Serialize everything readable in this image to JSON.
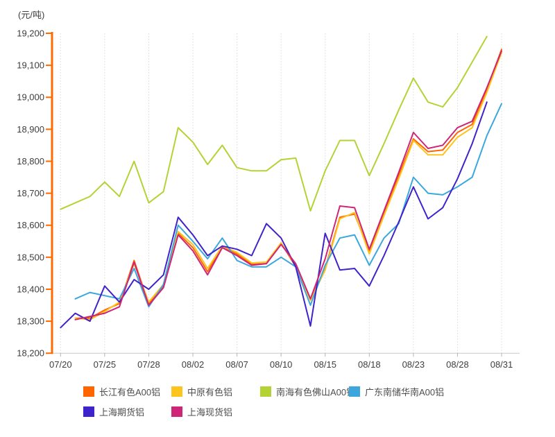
{
  "chart": {
    "unit_label": "(元/吨)",
    "colors": {
      "y_axis": "#ff6a00",
      "x_axis": "#c8c8c8",
      "x_tick": "#b5b5b5",
      "gridline": "#dadada",
      "tick_text": "#3d3d3d",
      "legend_text": "#4d4d4d",
      "background": "#ffffff"
    }
  },
  "chart_data": {
    "type": "line",
    "title": "",
    "ylabel": "元/吨",
    "xlabel": "",
    "ylim": [
      18200,
      19200
    ],
    "y_tick_step": 100,
    "y_tick_labels": [
      "18,200",
      "18,300",
      "18,400",
      "18,500",
      "18,600",
      "18,700",
      "18,800",
      "18,900",
      "19,000",
      "19,100",
      "19,200"
    ],
    "n_points": 31,
    "x_tick_every": 3,
    "x_tick_labels": [
      "07/20",
      "07/25",
      "07/28",
      "08/02",
      "08/07",
      "08/10",
      "08/15",
      "08/18",
      "08/23",
      "08/28",
      "08/31"
    ],
    "grid": "vertical-dotted",
    "legend_position": "bottom",
    "series": [
      {
        "name": "长江有色A00铝",
        "color": "#ff6600",
        "values": [
          null,
          18310,
          18310,
          18335,
          18355,
          18490,
          18355,
          18410,
          18575,
          18530,
          18455,
          18535,
          18510,
          18478,
          18480,
          18545,
          18470,
          18368,
          18465,
          18625,
          18635,
          18520,
          18635,
          18755,
          18870,
          18830,
          18835,
          18890,
          18915,
          19025,
          19150
        ]
      },
      {
        "name": "中原有色铝",
        "color": "#fcc41d",
        "values": [
          null,
          18310,
          18305,
          18330,
          18360,
          18480,
          18360,
          18415,
          18580,
          18540,
          18465,
          18535,
          18515,
          18482,
          18485,
          18545,
          18475,
          18365,
          18460,
          18620,
          18640,
          18510,
          18630,
          18745,
          18865,
          18820,
          18820,
          18875,
          18905,
          19015,
          19140
        ]
      },
      {
        "name": "南海有色佛山A00铝",
        "color": "#b3d335",
        "values": [
          18650,
          18670,
          18690,
          18735,
          18690,
          18800,
          18670,
          18705,
          18905,
          18860,
          18790,
          18850,
          18780,
          18770,
          18770,
          18805,
          18810,
          18645,
          18770,
          18865,
          18865,
          18755,
          18855,
          18960,
          19060,
          18985,
          18970,
          19030,
          19110,
          19190,
          null
        ]
      },
      {
        "name": "广东南储华南A00铝",
        "color": "#3ba7dc",
        "values": [
          null,
          18370,
          18390,
          18380,
          18370,
          18465,
          18345,
          18415,
          18600,
          18550,
          18495,
          18560,
          18490,
          18470,
          18470,
          18500,
          18470,
          18350,
          18475,
          18560,
          18570,
          18475,
          18560,
          18605,
          18750,
          18700,
          18695,
          18720,
          18750,
          18880,
          18980
        ]
      },
      {
        "name": "上海期货铝",
        "color": "#4022cb",
        "values": [
          18280,
          18325,
          18300,
          18410,
          18360,
          18430,
          18400,
          18445,
          18625,
          18570,
          18505,
          18535,
          18525,
          18505,
          18605,
          18560,
          18470,
          18285,
          18575,
          18460,
          18465,
          18410,
          18505,
          18610,
          18720,
          18620,
          18655,
          18745,
          18855,
          18985,
          null
        ]
      },
      {
        "name": "上海现货铝",
        "color": "#ce2576",
        "values": [
          null,
          18305,
          18315,
          18325,
          18345,
          18485,
          18350,
          18405,
          18570,
          18520,
          18445,
          18530,
          18505,
          18475,
          18480,
          18540,
          18480,
          18370,
          18495,
          18660,
          18655,
          18525,
          18645,
          18765,
          18890,
          18840,
          18850,
          18905,
          18925,
          19030,
          19145
        ]
      }
    ]
  }
}
